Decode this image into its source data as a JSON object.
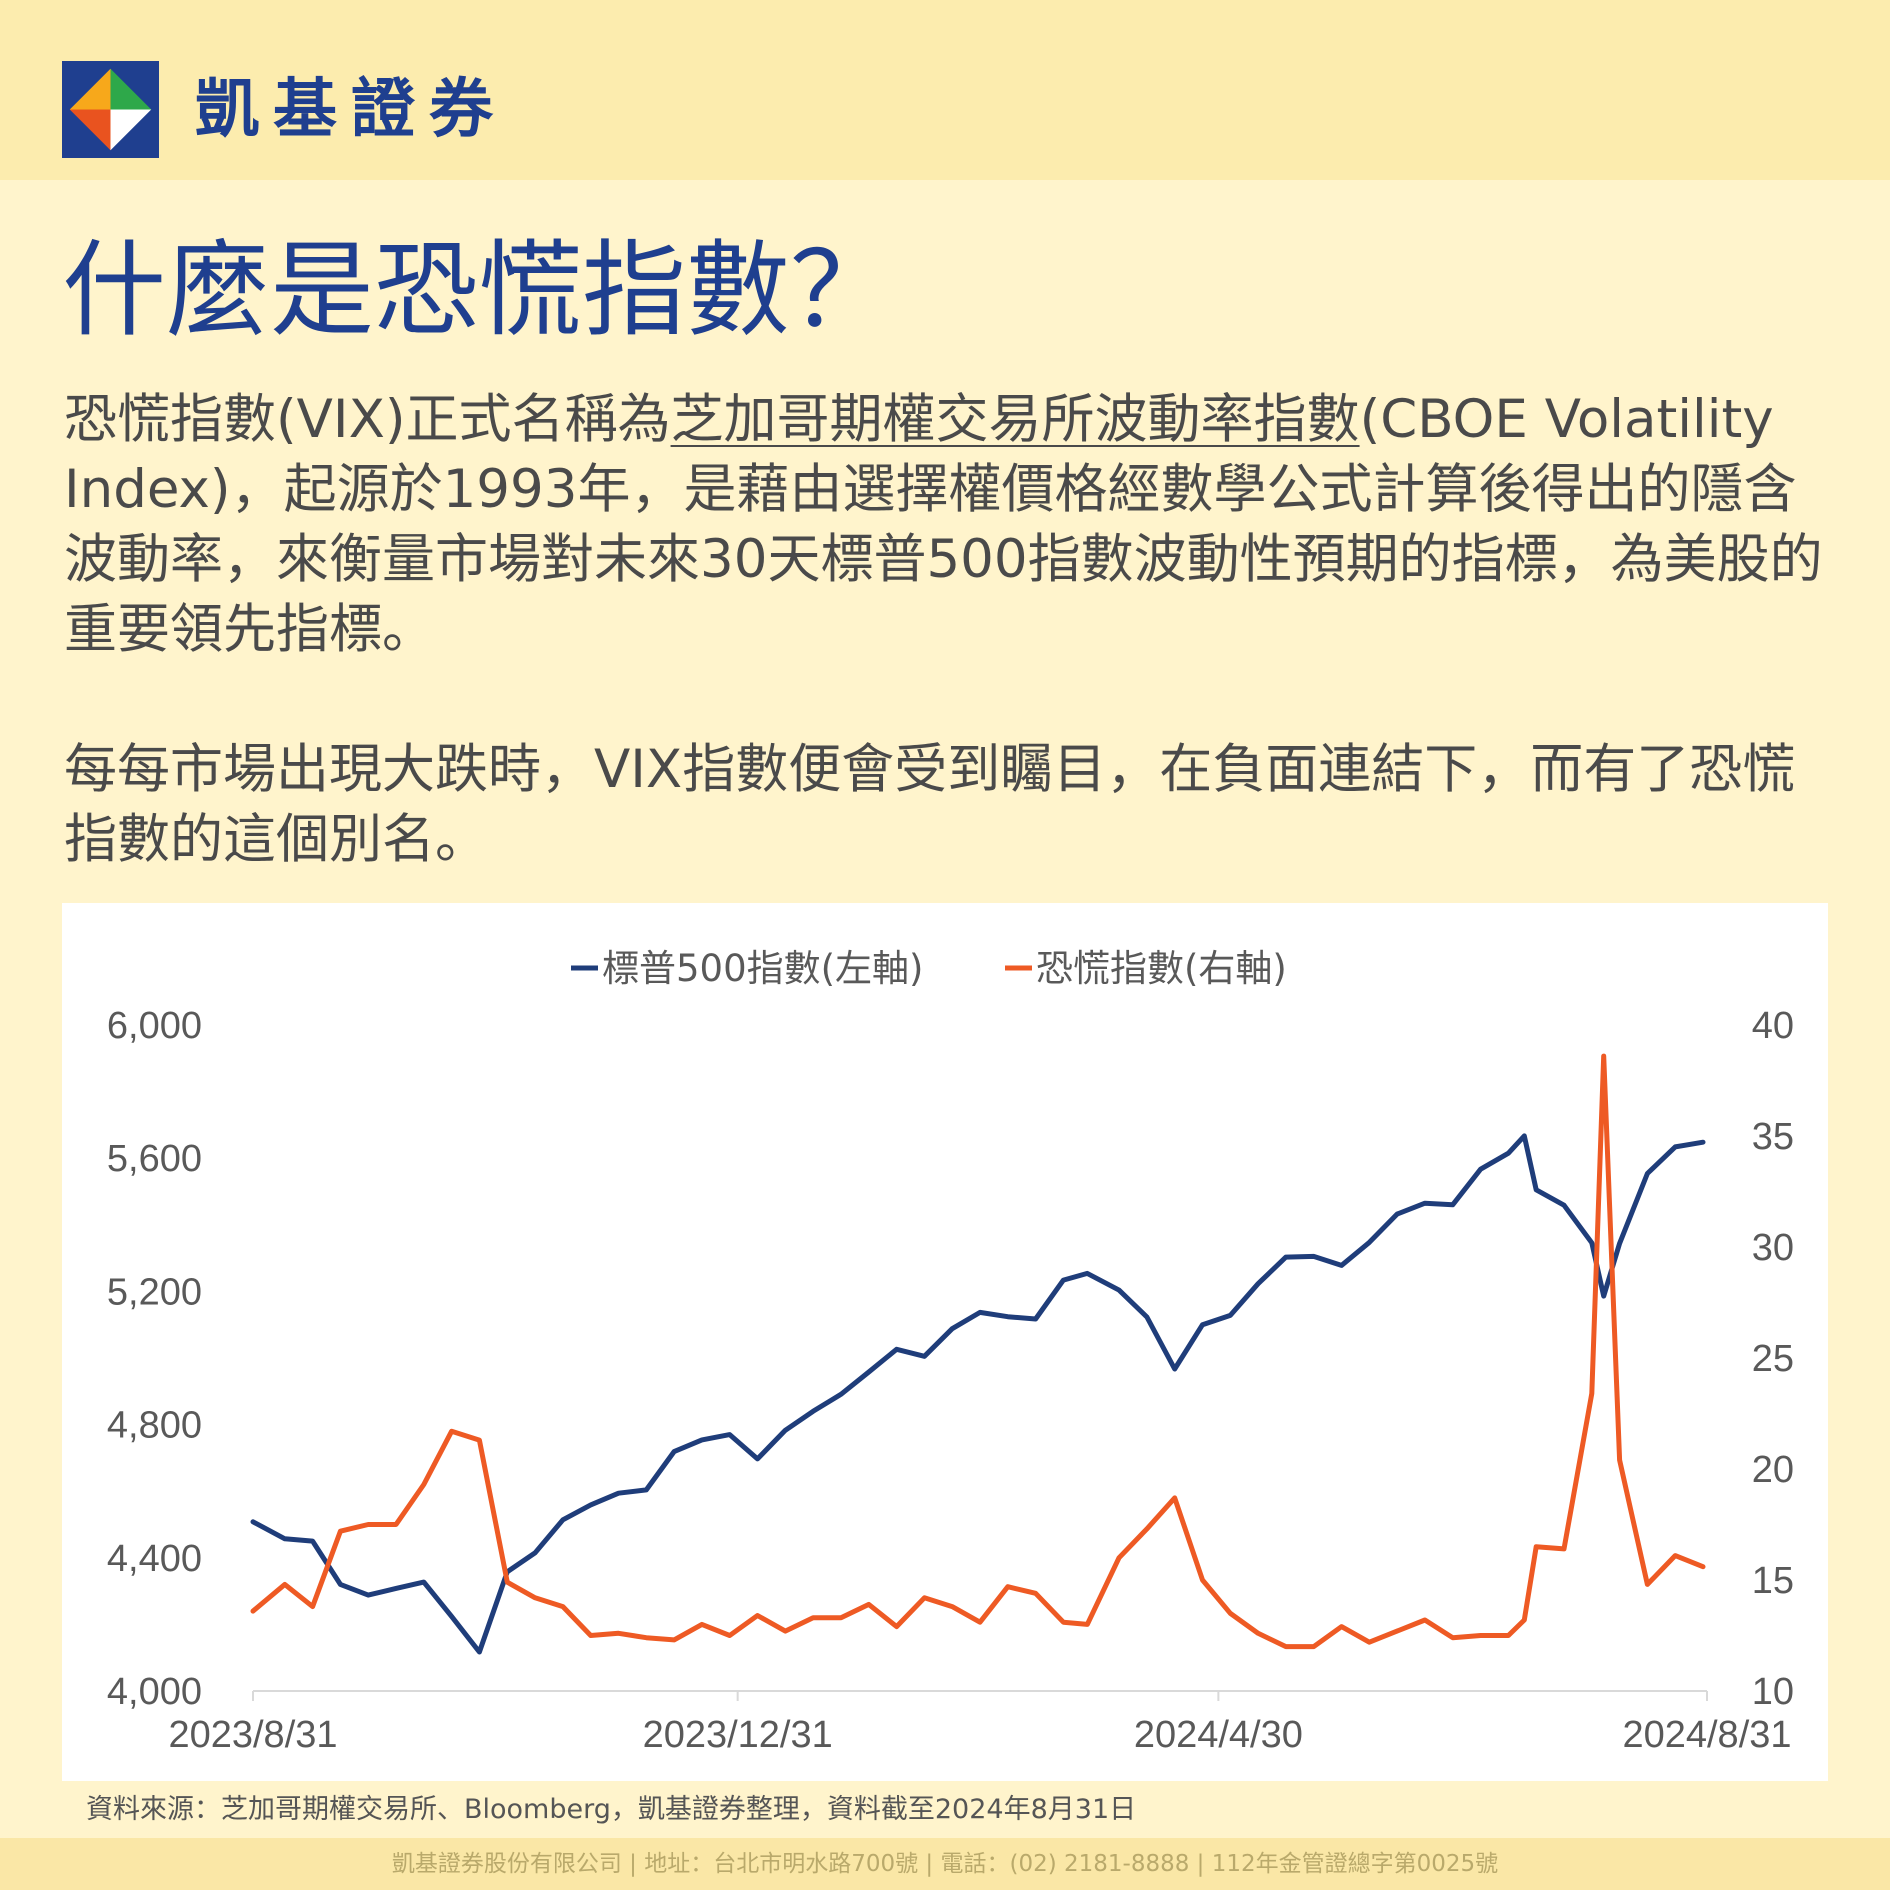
{
  "brand": {
    "name": "凱基證券"
  },
  "title": "什麼是恐慌指數？",
  "para1": {
    "part1": "恐慌指數(VIX)正式名稱為",
    "underlined": "芝加哥期權交易所波動率指數",
    "part2": "(CBOE Volatility Index)，起源於1993年，是藉由選擇權價格經數學公式計算後得出的隱含波動率，來衡量市場對未來30天標普500指數波動性預期的指標，為美股的重要領先指標。"
  },
  "para2": "每每市場出現大跌時，VIX指數便會受到矚目，在負面連結下，而有了恐慌指數的這個別名。",
  "source": "資料來源：芝加哥期權交易所、Bloomberg，凱基證券整理，資料截至2024年8月31日",
  "footer": "凱基證券股份有限公司 | 地址：台北市明水路700號 | 電話：(02) 2181-8888 | 112年金管證總字第0025號",
  "colors": {
    "sp500": "#1f3d7a",
    "vix": "#ee5a24",
    "brand_blue": "#1f3f8f"
  },
  "chart_data": {
    "type": "line",
    "x_ticks": [
      "2023/8/31",
      "2023/12/31",
      "2024/4/30",
      "2024/8/31"
    ],
    "x_range": [
      "2023/8/31",
      "2024/8/31"
    ],
    "y_left": {
      "range": [
        4000,
        6000
      ],
      "ticks": [
        "4,000",
        "4,400",
        "4,800",
        "5,200",
        "5,600",
        "6,000"
      ]
    },
    "y_right": {
      "range": [
        10,
        40
      ],
      "ticks": [
        "10",
        "15",
        "20",
        "25",
        "30",
        "35",
        "40"
      ]
    },
    "legend_position": "top-center",
    "grid": false,
    "series": [
      {
        "name": "標普500指數(左軸)",
        "axis": "left",
        "points": [
          [
            "2023/8/31",
            4508
          ],
          [
            "2023/9/8",
            4457
          ],
          [
            "2023/9/15",
            4450
          ],
          [
            "2023/9/22",
            4320
          ],
          [
            "2023/9/29",
            4288
          ],
          [
            "2023/10/6",
            4308
          ],
          [
            "2023/10/13",
            4327
          ],
          [
            "2023/10/20",
            4224
          ],
          [
            "2023/10/27",
            4117
          ],
          [
            "2023/11/3",
            4358
          ],
          [
            "2023/11/10",
            4415
          ],
          [
            "2023/11/17",
            4514
          ],
          [
            "2023/11/24",
            4559
          ],
          [
            "2023/12/1",
            4594
          ],
          [
            "2023/12/8",
            4604
          ],
          [
            "2023/12/15",
            4719
          ],
          [
            "2023/12/22",
            4754
          ],
          [
            "2023/12/29",
            4770
          ],
          [
            "2024/1/5",
            4697
          ],
          [
            "2024/1/12",
            4783
          ],
          [
            "2024/1/19",
            4840
          ],
          [
            "2024/1/26",
            4891
          ],
          [
            "2024/2/2",
            4958
          ],
          [
            "2024/2/9",
            5026
          ],
          [
            "2024/2/16",
            5005
          ],
          [
            "2024/2/23",
            5088
          ],
          [
            "2024/3/1",
            5137
          ],
          [
            "2024/3/8",
            5124
          ],
          [
            "2024/3/15",
            5117
          ],
          [
            "2024/3/22",
            5234
          ],
          [
            "2024/3/28",
            5254
          ],
          [
            "2024/4/5",
            5204
          ],
          [
            "2024/4/12",
            5123
          ],
          [
            "2024/4/19",
            4967
          ],
          [
            "2024/4/26",
            5100
          ],
          [
            "2024/5/3",
            5128
          ],
          [
            "2024/5/10",
            5223
          ],
          [
            "2024/5/17",
            5303
          ],
          [
            "2024/5/24",
            5305
          ],
          [
            "2024/5/31",
            5278
          ],
          [
            "2024/6/7",
            5347
          ],
          [
            "2024/6/14",
            5432
          ],
          [
            "2024/6/21",
            5465
          ],
          [
            "2024/6/28",
            5460
          ],
          [
            "2024/7/5",
            5567
          ],
          [
            "2024/7/12",
            5615
          ],
          [
            "2024/7/16",
            5667
          ],
          [
            "2024/7/19",
            5505
          ],
          [
            "2024/7/26",
            5459
          ],
          [
            "2024/8/2",
            5346
          ],
          [
            "2024/8/5",
            5186
          ],
          [
            "2024/8/9",
            5344
          ],
          [
            "2024/8/16",
            5554
          ],
          [
            "2024/8/23",
            5634
          ],
          [
            "2024/8/30",
            5648
          ]
        ]
      },
      {
        "name": "恐慌指數(右軸)",
        "axis": "right",
        "points": [
          [
            "2023/8/31",
            13.6
          ],
          [
            "2023/9/8",
            14.8
          ],
          [
            "2023/9/15",
            13.8
          ],
          [
            "2023/9/22",
            17.2
          ],
          [
            "2023/9/29",
            17.5
          ],
          [
            "2023/10/6",
            17.5
          ],
          [
            "2023/10/13",
            19.3
          ],
          [
            "2023/10/20",
            21.7
          ],
          [
            "2023/10/27",
            21.3
          ],
          [
            "2023/11/3",
            14.9
          ],
          [
            "2023/11/10",
            14.2
          ],
          [
            "2023/11/17",
            13.8
          ],
          [
            "2023/11/24",
            12.5
          ],
          [
            "2023/12/1",
            12.6
          ],
          [
            "2023/12/8",
            12.4
          ],
          [
            "2023/12/15",
            12.3
          ],
          [
            "2023/12/22",
            13.0
          ],
          [
            "2023/12/29",
            12.5
          ],
          [
            "2024/1/5",
            13.4
          ],
          [
            "2024/1/12",
            12.7
          ],
          [
            "2024/1/19",
            13.3
          ],
          [
            "2024/1/26",
            13.3
          ],
          [
            "2024/2/2",
            13.9
          ],
          [
            "2024/2/9",
            12.9
          ],
          [
            "2024/2/16",
            14.2
          ],
          [
            "2024/2/23",
            13.8
          ],
          [
            "2024/3/1",
            13.1
          ],
          [
            "2024/3/8",
            14.7
          ],
          [
            "2024/3/15",
            14.4
          ],
          [
            "2024/3/22",
            13.1
          ],
          [
            "2024/3/28",
            13.0
          ],
          [
            "2024/4/5",
            16.0
          ],
          [
            "2024/4/12",
            17.3
          ],
          [
            "2024/4/19",
            18.7
          ],
          [
            "2024/4/26",
            15.0
          ],
          [
            "2024/5/3",
            13.5
          ],
          [
            "2024/5/10",
            12.6
          ],
          [
            "2024/5/17",
            12.0
          ],
          [
            "2024/5/24",
            12.0
          ],
          [
            "2024/5/31",
            12.9
          ],
          [
            "2024/6/7",
            12.2
          ],
          [
            "2024/6/14",
            12.7
          ],
          [
            "2024/6/21",
            13.2
          ],
          [
            "2024/6/28",
            12.4
          ],
          [
            "2024/7/5",
            12.5
          ],
          [
            "2024/7/12",
            12.5
          ],
          [
            "2024/7/16",
            13.2
          ],
          [
            "2024/7/19",
            16.5
          ],
          [
            "2024/7/26",
            16.4
          ],
          [
            "2024/8/2",
            23.4
          ],
          [
            "2024/8/5",
            38.6
          ],
          [
            "2024/8/9",
            20.4
          ],
          [
            "2024/8/16",
            14.8
          ],
          [
            "2024/8/23",
            16.1
          ],
          [
            "2024/8/30",
            15.6
          ]
        ]
      }
    ]
  }
}
